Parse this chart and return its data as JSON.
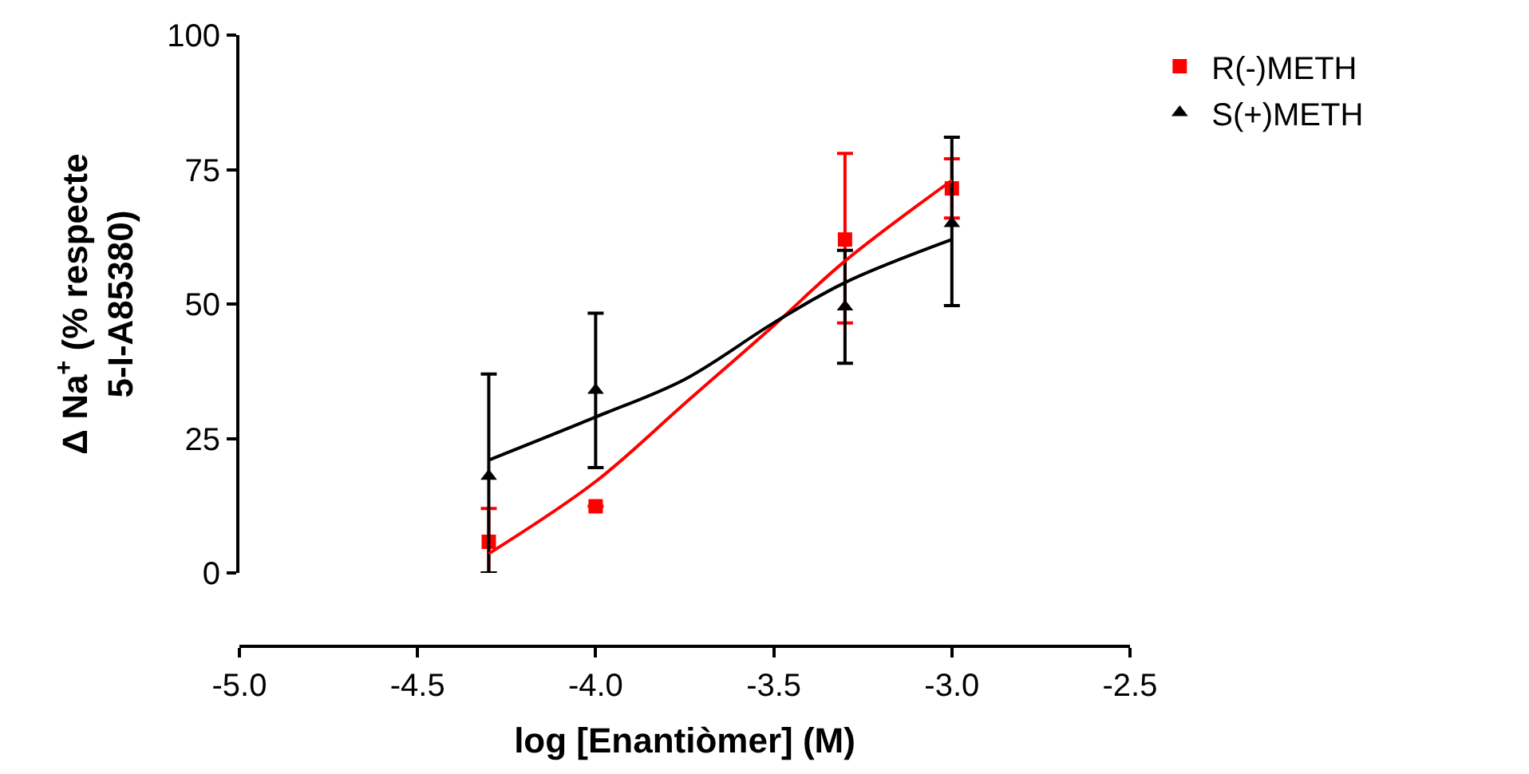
{
  "chart_data": {
    "type": "scatter",
    "xlabel": "log [Enantiòmer] (M)",
    "ylabel": "Δ Na$^{+}$ (% respecte\n5-I-A85380)",
    "x": [
      -4.3,
      -4.0,
      -3.3,
      -3.0
    ],
    "series": [
      {
        "name": "R(-)METH",
        "color": "#ff0000",
        "marker": "square",
        "values": [
          5.8,
          12.4,
          62,
          71.5
        ],
        "errors": [
          [
            0,
            12
          ],
          null,
          [
            46.5,
            78
          ],
          [
            66,
            77
          ]
        ]
      },
      {
        "name": "S(+)METH",
        "color": "#000000",
        "marker": "triangle",
        "values": [
          18,
          34,
          49.5,
          65
        ],
        "errors": [
          [
            0,
            37
          ],
          [
            19.6,
            48.3
          ],
          [
            39,
            60
          ],
          [
            49.7,
            81
          ]
        ]
      },
      {
        "type": "line",
        "color": "#ff0000",
        "x": [
          -4.3,
          -4.0,
          -3.75,
          -3.5,
          -3.3,
          -3.0
        ],
        "values": [
          3.6,
          17,
          31.5,
          46,
          58,
          73
        ]
      },
      {
        "type": "line",
        "color": "#000000",
        "x": [
          -4.3,
          -4.0,
          -3.75,
          -3.5,
          -3.3,
          -3.0
        ],
        "values": [
          21,
          29,
          36,
          46.5,
          54,
          62
        ]
      }
    ],
    "xlim": [
      -5.0,
      -2.5
    ],
    "xticks": [
      {
        "value": -5.0,
        "label": "-5.0"
      },
      {
        "value": -4.5,
        "label": "-4.5"
      },
      {
        "value": -4.0,
        "label": "-4.0"
      },
      {
        "value": -3.5,
        "label": "-3.5"
      },
      {
        "value": -3.0,
        "label": "-3.0"
      },
      {
        "value": -2.5,
        "label": "-2.5"
      }
    ],
    "ylim": [
      0,
      100
    ],
    "yticks": [
      0,
      25,
      50,
      75,
      100
    ],
    "legend": "top right"
  }
}
